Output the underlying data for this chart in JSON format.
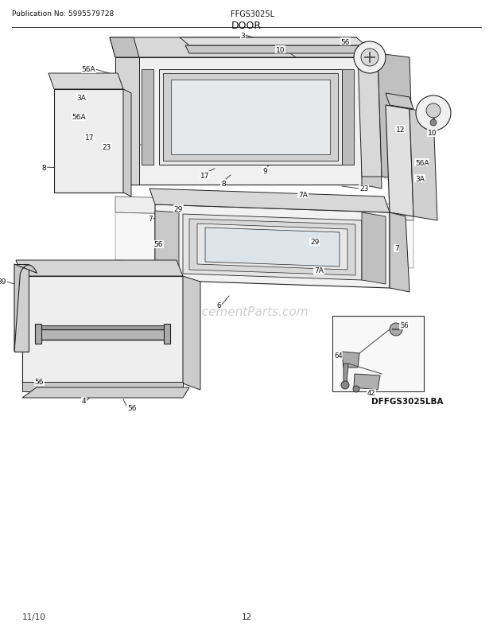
{
  "title": "DOOR",
  "pub_no": "Publication No: 5995579728",
  "model": "FFGS3025L",
  "diagram_id": "DFFGS3025LBA",
  "date": "11/10",
  "page": "12",
  "bg_color": "#ffffff",
  "lc": "#222222",
  "figsize": [
    6.2,
    8.03
  ],
  "dpi": 100
}
